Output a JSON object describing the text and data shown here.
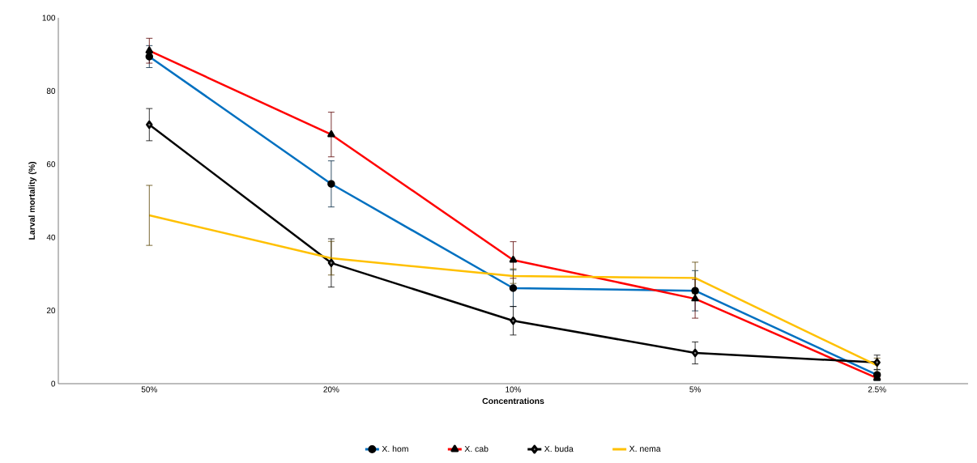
{
  "chart_data": {
    "type": "line",
    "xlabel": "Concentrations",
    "ylabel": "Larval mortality (%)",
    "categories": [
      "50%",
      "20%",
      "10%",
      "5%",
      "2.5%"
    ],
    "ylim": [
      0,
      100
    ],
    "yticks": [
      0,
      20,
      40,
      60,
      80,
      100
    ],
    "grid": false,
    "legend": "bottom",
    "line_style": "solid",
    "series": [
      {
        "name": "X. hom",
        "color": "#0070c0",
        "marker": "circle",
        "values": [
          89.4,
          54.6,
          26.1,
          25.4,
          2.4
        ],
        "errors": [
          3,
          6.3,
          5,
          5.5,
          1.5
        ]
      },
      {
        "name": "X. cab",
        "color": "#ff0000",
        "marker": "triangle",
        "values": [
          91,
          68.1,
          33.8,
          23.2,
          1.5
        ],
        "errors": [
          3.4,
          6.1,
          5,
          5.3,
          null
        ]
      },
      {
        "name": "X. buda",
        "color": "#000000",
        "marker": "diamond",
        "values": [
          70.8,
          33,
          17.2,
          8.4,
          5.8
        ],
        "errors": [
          4.4,
          6.6,
          3.9,
          3,
          2
        ]
      },
      {
        "name": "X. nema",
        "color": "#ffc000",
        "marker": "none",
        "values": [
          46,
          34.3,
          29.4,
          28.9,
          5
        ],
        "errors": [
          8.2,
          4.6,
          2,
          4.3,
          2
        ]
      }
    ]
  }
}
